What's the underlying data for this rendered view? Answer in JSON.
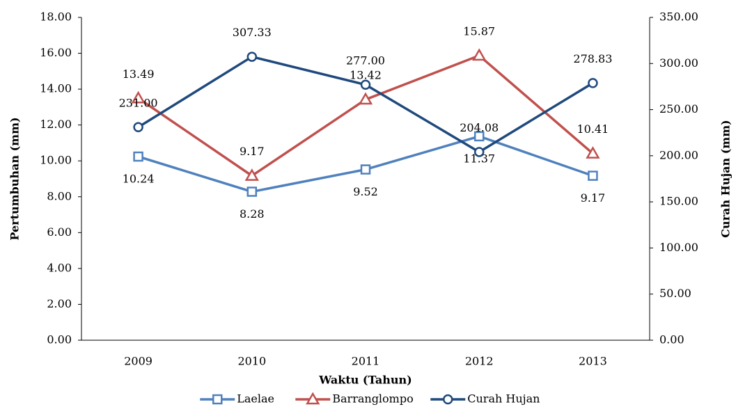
{
  "chart_data": {
    "type": "line",
    "x_label": "Waktu (Tahun)",
    "y_label": "Pertumbuhan (mm)",
    "y2_label": "Curah Hujan (mm)",
    "categories": [
      "2009",
      "2010",
      "2011",
      "2012",
      "2013"
    ],
    "series": [
      {
        "name": "Laelae",
        "color": "#4f81bd",
        "marker": "square",
        "label_side": "below",
        "values": [
          10.24,
          8.28,
          9.52,
          11.37,
          9.17
        ]
      },
      {
        "name": "Barranglompo",
        "color": "#c0504d",
        "marker": "triangle",
        "label_side": "above",
        "values": [
          13.49,
          9.17,
          13.42,
          15.87,
          10.41
        ]
      },
      {
        "name": "Curah Hujan",
        "color": "#1f497d",
        "marker": "circle",
        "label_side": "above",
        "axis": "y2",
        "values": [
          231,
          307.33,
          277,
          204.08,
          278.83
        ],
        "value_labels": [
          "231.00",
          "307.33",
          "277.00",
          "204.08",
          "278.83"
        ]
      }
    ],
    "ylim": [
      0,
      18
    ],
    "yticks": [
      {
        "value": 0,
        "label": "0.00"
      },
      {
        "value": 2,
        "label": "2.00"
      },
      {
        "value": 4,
        "label": "4.00"
      },
      {
        "value": 6,
        "label": "6.00"
      },
      {
        "value": 8,
        "label": "8.00"
      },
      {
        "value": 10,
        "label": "10.00"
      },
      {
        "value": 12,
        "label": "12.00"
      },
      {
        "value": 14,
        "label": "14.00"
      },
      {
        "value": 16,
        "label": "16.00"
      },
      {
        "value": 18,
        "label": "18.00"
      }
    ],
    "y2lim": [
      0,
      350
    ],
    "y2ticks": [
      {
        "value": 0,
        "label": "0.00"
      },
      {
        "value": 50,
        "label": "50.00"
      },
      {
        "value": 100,
        "label": "100.00"
      },
      {
        "value": 150,
        "label": "150.00"
      },
      {
        "value": 200,
        "label": "200.00"
      },
      {
        "value": 250,
        "label": "250.00"
      },
      {
        "value": 300,
        "label": "300.00"
      },
      {
        "value": 350,
        "label": "350.00"
      }
    ],
    "grid": false,
    "legend": "bottom"
  }
}
